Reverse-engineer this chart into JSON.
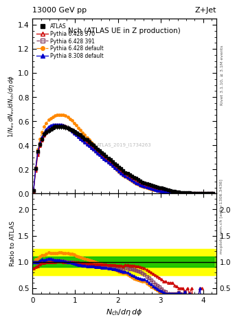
{
  "title_top_left": "13000 GeV pp",
  "title_top_right": "Z+Jet",
  "plot_title": "Nch (ATLAS UE in Z production)",
  "xlabel": "N_{ch}/d\\eta d\\phi",
  "ylabel_main": "1/N_{ev} dN_{ev}/dN_{ch}/d\\eta d\\phi",
  "ylabel_ratio": "Ratio to ATLAS",
  "right_label_top": "Rivet 3.1.10, ≥ 3.1M events",
  "right_label_bottom": "mcplots.cern.ch [arXiv:1306.3436]",
  "watermark": "ATLAS_2019_I1734263",
  "x_main": [
    0.025,
    0.075,
    0.125,
    0.175,
    0.225,
    0.275,
    0.325,
    0.375,
    0.425,
    0.475,
    0.525,
    0.575,
    0.625,
    0.675,
    0.725,
    0.775,
    0.825,
    0.875,
    0.925,
    0.975,
    1.025,
    1.075,
    1.125,
    1.175,
    1.225,
    1.275,
    1.325,
    1.375,
    1.425,
    1.475,
    1.525,
    1.575,
    1.625,
    1.675,
    1.725,
    1.775,
    1.825,
    1.875,
    1.925,
    1.975,
    2.025,
    2.075,
    2.125,
    2.175,
    2.225,
    2.275,
    2.325,
    2.375,
    2.425,
    2.475,
    2.525,
    2.575,
    2.625,
    2.675,
    2.725,
    2.775,
    2.825,
    2.875,
    2.925,
    2.975,
    3.025,
    3.075,
    3.125,
    3.175,
    3.225,
    3.275,
    3.325,
    3.375,
    3.425,
    3.475,
    3.525,
    3.575,
    3.625,
    3.675,
    3.725,
    3.775,
    3.825,
    3.875,
    3.925,
    3.975,
    4.025,
    4.075,
    4.125,
    4.175,
    4.225
  ],
  "atlas_y": [
    0.025,
    0.21,
    0.35,
    0.41,
    0.45,
    0.49,
    0.51,
    0.52,
    0.535,
    0.545,
    0.555,
    0.555,
    0.555,
    0.555,
    0.555,
    0.55,
    0.545,
    0.535,
    0.525,
    0.515,
    0.505,
    0.495,
    0.485,
    0.47,
    0.455,
    0.445,
    0.43,
    0.415,
    0.4,
    0.385,
    0.37,
    0.355,
    0.34,
    0.325,
    0.31,
    0.295,
    0.28,
    0.265,
    0.25,
    0.235,
    0.22,
    0.205,
    0.19,
    0.175,
    0.165,
    0.155,
    0.145,
    0.135,
    0.125,
    0.115,
    0.105,
    0.095,
    0.085,
    0.08,
    0.075,
    0.07,
    0.065,
    0.06,
    0.055,
    0.05,
    0.045,
    0.04,
    0.035,
    0.03,
    0.025,
    0.02,
    0.018,
    0.015,
    0.012,
    0.01,
    0.008,
    0.007,
    0.006,
    0.005,
    0.004,
    0.004,
    0.003,
    0.003,
    0.002,
    0.002,
    0.001,
    0.001,
    0.001,
    0.001,
    0.001
  ],
  "p6_370_y": [
    0.022,
    0.19,
    0.32,
    0.395,
    0.44,
    0.48,
    0.505,
    0.52,
    0.535,
    0.545,
    0.555,
    0.56,
    0.56,
    0.56,
    0.555,
    0.55,
    0.545,
    0.535,
    0.525,
    0.51,
    0.5,
    0.49,
    0.475,
    0.46,
    0.445,
    0.43,
    0.415,
    0.4,
    0.385,
    0.37,
    0.355,
    0.34,
    0.325,
    0.31,
    0.295,
    0.28,
    0.265,
    0.25,
    0.235,
    0.22,
    0.205,
    0.19,
    0.175,
    0.165,
    0.155,
    0.145,
    0.135,
    0.125,
    0.115,
    0.105,
    0.095,
    0.085,
    0.075,
    0.068,
    0.062,
    0.056,
    0.05,
    0.045,
    0.04,
    0.035,
    0.03,
    0.025,
    0.022,
    0.018,
    0.015,
    0.012,
    0.01,
    0.008,
    0.006,
    0.005,
    0.004,
    0.003,
    0.003,
    0.002,
    0.002,
    0.001,
    0.001,
    0.001,
    0.001,
    0.001,
    0.0,
    0.0,
    0.0,
    0.0,
    0.0
  ],
  "p6_391_y": [
    0.025,
    0.21,
    0.34,
    0.415,
    0.455,
    0.495,
    0.52,
    0.535,
    0.545,
    0.555,
    0.565,
    0.565,
    0.565,
    0.565,
    0.56,
    0.555,
    0.545,
    0.535,
    0.52,
    0.505,
    0.49,
    0.475,
    0.46,
    0.445,
    0.43,
    0.415,
    0.4,
    0.385,
    0.37,
    0.355,
    0.34,
    0.325,
    0.31,
    0.295,
    0.28,
    0.265,
    0.25,
    0.235,
    0.22,
    0.205,
    0.19,
    0.175,
    0.165,
    0.155,
    0.145,
    0.135,
    0.125,
    0.115,
    0.105,
    0.095,
    0.085,
    0.075,
    0.065,
    0.058,
    0.052,
    0.046,
    0.04,
    0.035,
    0.03,
    0.026,
    0.022,
    0.018,
    0.015,
    0.012,
    0.01,
    0.008,
    0.007,
    0.006,
    0.005,
    0.004,
    0.003,
    0.003,
    0.002,
    0.002,
    0.001,
    0.001,
    0.001,
    0.001,
    0.0,
    0.0,
    0.0,
    0.0,
    0.0,
    0.0,
    0.0
  ],
  "p6_def_y": [
    0.025,
    0.22,
    0.37,
    0.45,
    0.51,
    0.555,
    0.585,
    0.61,
    0.625,
    0.635,
    0.645,
    0.65,
    0.655,
    0.655,
    0.65,
    0.645,
    0.635,
    0.62,
    0.605,
    0.585,
    0.565,
    0.545,
    0.525,
    0.505,
    0.485,
    0.465,
    0.445,
    0.425,
    0.405,
    0.385,
    0.365,
    0.345,
    0.325,
    0.305,
    0.285,
    0.265,
    0.245,
    0.228,
    0.212,
    0.196,
    0.18,
    0.165,
    0.15,
    0.138,
    0.126,
    0.114,
    0.103,
    0.093,
    0.084,
    0.075,
    0.067,
    0.06,
    0.053,
    0.047,
    0.042,
    0.037,
    0.033,
    0.029,
    0.025,
    0.022,
    0.019,
    0.016,
    0.014,
    0.012,
    0.01,
    0.008,
    0.007,
    0.006,
    0.005,
    0.004,
    0.003,
    0.003,
    0.002,
    0.002,
    0.001,
    0.001,
    0.001,
    0.001,
    0.0,
    0.0,
    0.0,
    0.0,
    0.0,
    0.0,
    0.0
  ],
  "p8_def_y": [
    0.025,
    0.21,
    0.35,
    0.42,
    0.47,
    0.505,
    0.535,
    0.555,
    0.565,
    0.57,
    0.575,
    0.575,
    0.575,
    0.57,
    0.565,
    0.555,
    0.545,
    0.53,
    0.515,
    0.5,
    0.485,
    0.47,
    0.455,
    0.44,
    0.425,
    0.41,
    0.395,
    0.38,
    0.365,
    0.35,
    0.335,
    0.32,
    0.305,
    0.29,
    0.275,
    0.26,
    0.245,
    0.23,
    0.215,
    0.2,
    0.185,
    0.17,
    0.155,
    0.143,
    0.131,
    0.12,
    0.109,
    0.099,
    0.089,
    0.08,
    0.072,
    0.064,
    0.057,
    0.051,
    0.045,
    0.04,
    0.035,
    0.031,
    0.027,
    0.023,
    0.02,
    0.017,
    0.014,
    0.012,
    0.01,
    0.008,
    0.007,
    0.006,
    0.005,
    0.004,
    0.003,
    0.003,
    0.002,
    0.002,
    0.001,
    0.001,
    0.001,
    0.001,
    0.001,
    0.0,
    0.0,
    0.0,
    0.0,
    0.0,
    0.0
  ],
  "color_atlas": "#000000",
  "color_p6_370": "#cc0000",
  "color_p6_391": "#884466",
  "color_p6_def": "#ff8800",
  "color_p8_def": "#0000cc",
  "ylim_main": [
    0.0,
    1.45
  ],
  "ylim_ratio": [
    0.4,
    2.3
  ],
  "xlim": [
    0.0,
    4.3
  ],
  "yticks_main": [
    0.0,
    0.2,
    0.4,
    0.6,
    0.8,
    1.0,
    1.2,
    1.4
  ],
  "yticks_ratio": [
    0.5,
    1.0,
    1.5,
    2.0
  ]
}
